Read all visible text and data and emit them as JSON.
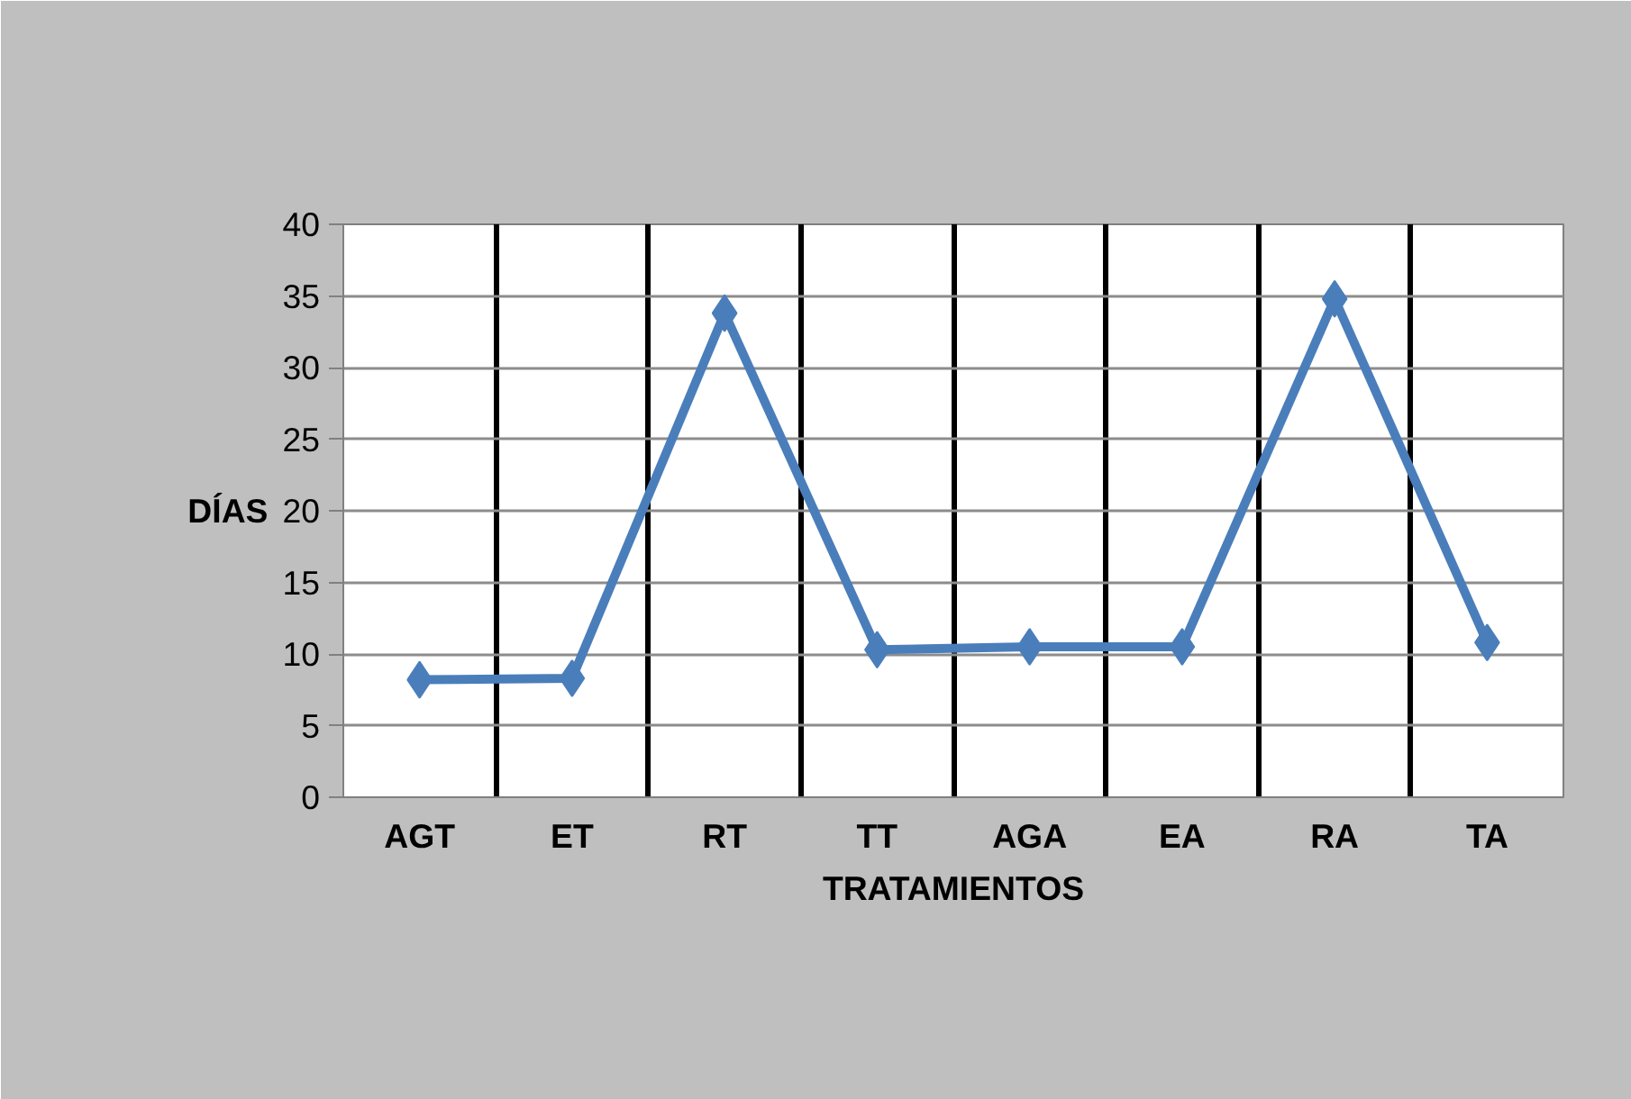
{
  "chart_data": {
    "type": "line",
    "xlabel": "TRATAMIENTOS",
    "ylabel": "DÍAS",
    "categories": [
      "AGT",
      "ET",
      "RT",
      "TT",
      "AGA",
      "EA",
      "RA",
      "TA"
    ],
    "series": [
      {
        "color": "#4a7ebb",
        "values": [
          8.2,
          8.3,
          33.8,
          10.3,
          10.5,
          10.5,
          34.8,
          10.8
        ]
      }
    ],
    "ylim": [
      0,
      40
    ],
    "yticks": [
      0,
      5,
      10,
      15,
      20,
      25,
      30,
      35,
      40
    ],
    "grid": true,
    "marker": "diamond",
    "line_style": "solid"
  }
}
